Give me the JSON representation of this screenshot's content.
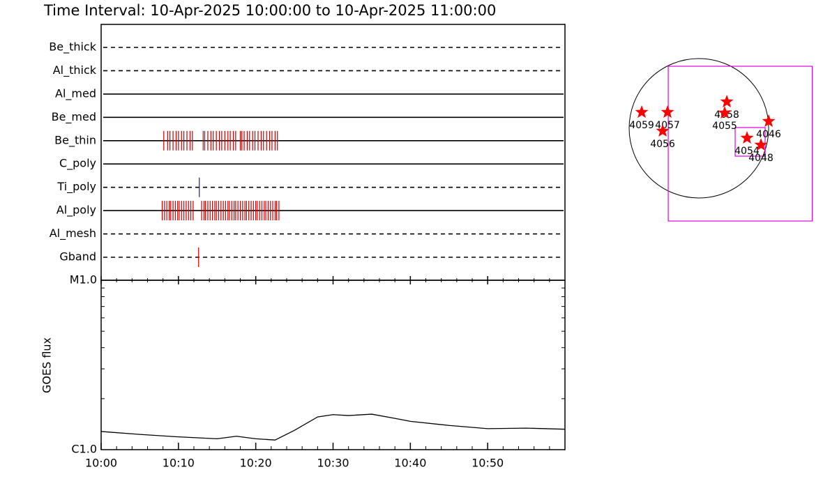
{
  "chart_data": [
    {
      "type": "timeline",
      "title": "Time Interval: 10-Apr-2025 10:00:00 to 10-Apr-2025 11:00:00",
      "categories": [
        "Be_thick",
        "Al_thick",
        "Al_med",
        "Be_med",
        "Be_thin",
        "C_poly",
        "Ti_poly",
        "Al_poly",
        "Al_mesh",
        "Gband"
      ],
      "line_styles": [
        "dashed",
        "dashed",
        "solid",
        "solid",
        "solid",
        "solid",
        "dashed",
        "solid",
        "dashed",
        "dashed"
      ],
      "xlim": [
        0,
        60
      ],
      "events": [
        [],
        [],
        [],
        [],
        [
          8.1,
          8.6,
          8.9,
          9.3,
          9.7,
          10.0,
          10.4,
          10.7,
          11.1,
          11.5,
          11.8,
          13.2,
          13.4,
          13.8,
          14.2,
          14.5,
          14.9,
          15.3,
          15.6,
          16.0,
          16.4,
          16.7,
          17.1,
          17.4,
          18.0,
          18.2,
          18.5,
          18.9,
          19.2,
          19.6,
          19.9,
          20.3,
          20.7,
          21.0,
          21.4,
          21.8,
          22.1,
          22.5,
          22.8
        ],
        [],
        [
          12.7
        ],
        [
          7.9,
          8.2,
          8.5,
          8.8,
          9.0,
          9.3,
          9.6,
          9.9,
          10.1,
          10.4,
          10.7,
          11.0,
          11.3,
          11.6,
          11.9,
          13.0,
          13.3,
          13.5,
          13.8,
          14.1,
          14.4,
          14.7,
          14.9,
          15.2,
          15.5,
          15.8,
          16.1,
          16.4,
          16.6,
          16.9,
          17.2,
          17.4,
          17.7,
          18.0,
          18.3,
          18.6,
          18.8,
          19.1,
          19.4,
          19.7,
          20.0,
          20.2,
          20.5,
          20.8,
          21.1,
          21.3,
          21.6,
          21.9,
          22.2,
          22.5,
          22.7,
          23.0
        ],
        [],
        [
          12.6
        ]
      ],
      "event_colors": [
        "#ff0000",
        "#ff0000",
        "#ff0000",
        "#ff0000",
        "#cc0000",
        "#ff0000",
        "#1a1aa0",
        "#cc0000",
        "#ff0000",
        "#ff0000"
      ]
    },
    {
      "type": "line",
      "ylabel": "GOES flux",
      "log_scale": true,
      "xlim": [
        0,
        60
      ],
      "xticks": [
        {
          "value": 0,
          "label": "10:00"
        },
        {
          "value": 10,
          "label": "10:10"
        },
        {
          "value": 20,
          "label": "10:20"
        },
        {
          "value": 30,
          "label": "10:30"
        },
        {
          "value": 40,
          "label": "10:40"
        },
        {
          "value": 50,
          "label": "10:50"
        }
      ],
      "ylim": [
        1e-06,
        1e-05
      ],
      "yticks": [
        {
          "value": 1e-06,
          "label": "C1.0"
        },
        {
          "value": 1e-05,
          "label": "M1.0"
        }
      ],
      "x": [
        0,
        5,
        10,
        15,
        17.5,
        20,
        22.5,
        25,
        28,
        30,
        32,
        35,
        38,
        40,
        45,
        50,
        55,
        60
      ],
      "series": [
        {
          "color": "#000000",
          "values": [
            1.28e-06,
            1.23e-06,
            1.19e-06,
            1.16e-06,
            1.2e-06,
            1.16e-06,
            1.14e-06,
            1.3e-06,
            1.56e-06,
            1.61e-06,
            1.59e-06,
            1.62e-06,
            1.53e-06,
            1.47e-06,
            1.39e-06,
            1.33e-06,
            1.34e-06,
            1.32e-06
          ]
        }
      ]
    },
    {
      "type": "map",
      "solar_radius": 960,
      "marker_color": "#ff0000",
      "box_color": "#e000e0",
      "points": [
        {
          "label": "4059",
          "x": -787,
          "y": 221
        },
        {
          "label": "4057",
          "x": -432,
          "y": 221
        },
        {
          "label": "4056",
          "x": -499,
          "y": -38
        },
        {
          "label": "4058",
          "x": 384,
          "y": 365
        },
        {
          "label": "4055",
          "x": 355,
          "y": 211
        },
        {
          "label": "4046",
          "x": 960,
          "y": 96
        },
        {
          "label": "4054",
          "x": 662,
          "y": -134
        },
        {
          "label": "4048",
          "x": 854,
          "y": -230
        }
      ],
      "boxes": [
        {
          "x0": -422,
          "x1": 1560,
          "y0": -1277,
          "y1": 854
        },
        {
          "x0": 499,
          "x1": 912,
          "y0": -384,
          "y1": 10
        }
      ]
    }
  ]
}
